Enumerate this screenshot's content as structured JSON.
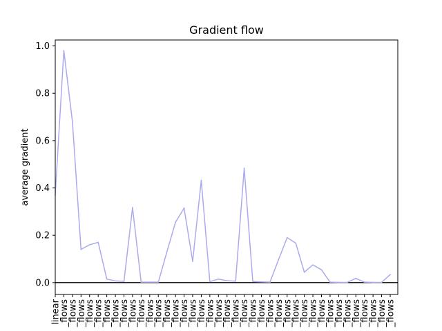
{
  "chart_data": {
    "type": "line",
    "title": "Gradient flow",
    "xlabel": "",
    "ylabel": "average gradient",
    "ylim": [
      -0.05,
      1.025
    ],
    "yticks": [
      "0.0",
      "0.2",
      "0.4",
      "0.6",
      "0.8",
      "1.0"
    ],
    "xtick_labels": [
      "linear",
      "_flows",
      "_flows",
      "_flows",
      "_flows",
      "_flows",
      "_flows",
      "_flows",
      "_flows",
      "_flows",
      "_flows",
      "_flows",
      "_flows",
      "_flows",
      "_flows",
      "_flows",
      "_flows",
      "_flows",
      "_flows",
      "_flows",
      "_flows",
      "_flows",
      "_flows",
      "_flows",
      "_flows",
      "_flows",
      "_flows",
      "_flows",
      "_flows",
      "_flows",
      "_flows",
      "_flows",
      "_flows",
      "_flows",
      "_flows",
      "_flows",
      "_flows",
      "_flows",
      "_flows",
      "_flows"
    ],
    "series": [
      {
        "color": "#aaaaee",
        "values": [
          0.37,
          0.98,
          0.68,
          0.14,
          0.16,
          0.17,
          0.015,
          0.007,
          0.005,
          0.317,
          0.002,
          0.002,
          0.002,
          0.13,
          0.255,
          0.315,
          0.09,
          0.432,
          0.004,
          0.015,
          0.008,
          0.006,
          0.483,
          0.005,
          0.003,
          0.002,
          0.097,
          0.19,
          0.167,
          0.044,
          0.075,
          0.054,
          0.002,
          0.001,
          0.001,
          0.018,
          0.002,
          0.001,
          0.001,
          0.034
        ]
      }
    ],
    "hline": 0,
    "hline_color": "#000000",
    "grid": false
  }
}
